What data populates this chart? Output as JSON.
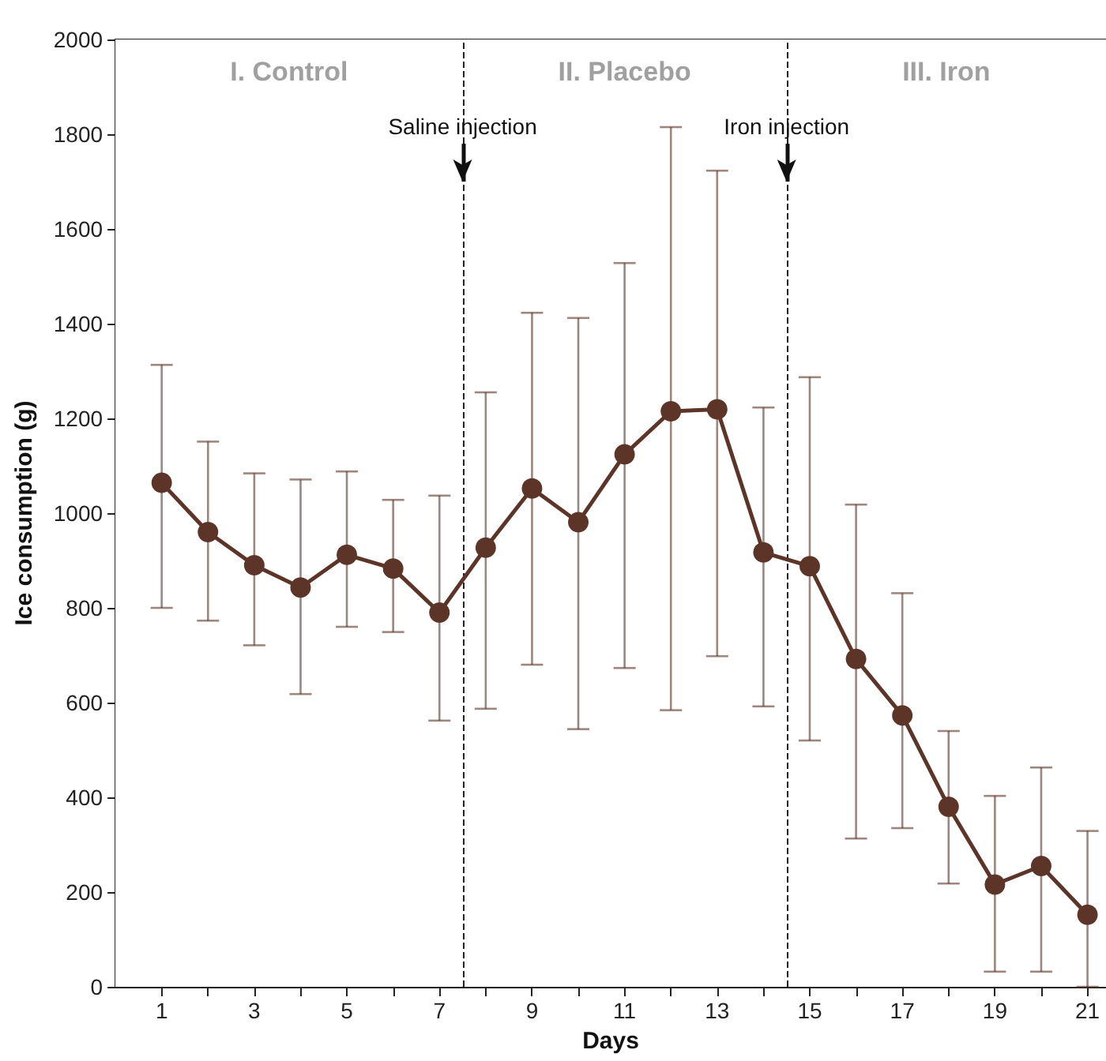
{
  "chart_data": {
    "type": "line",
    "xlabel": "Days",
    "ylabel": "Ice consumption (g)",
    "x": [
      1,
      2,
      3,
      4,
      5,
      6,
      7,
      8,
      9,
      10,
      11,
      12,
      13,
      14,
      15,
      16,
      17,
      18,
      19,
      20,
      21
    ],
    "series": [
      {
        "color": "#5c3528",
        "values": [
          1064,
          960,
          890,
          843,
          912,
          883,
          790,
          927,
          1052,
          981,
          1124,
          1215,
          1219,
          917,
          888,
          692,
          573,
          380,
          216,
          255,
          152
        ],
        "errors": [
          [
            800,
            1313
          ],
          [
            773,
            1151
          ],
          [
            721,
            1084
          ],
          [
            618,
            1071
          ],
          [
            760,
            1088
          ],
          [
            749,
            1028
          ],
          [
            562,
            1037
          ],
          [
            587,
            1255
          ],
          [
            680,
            1423
          ],
          [
            544,
            1412
          ],
          [
            673,
            1528
          ],
          [
            584,
            1815
          ],
          [
            698,
            1723
          ],
          [
            592,
            1223
          ],
          [
            520,
            1287
          ],
          [
            313,
            1018
          ],
          [
            335,
            831
          ],
          [
            218,
            540
          ],
          [
            32,
            403
          ],
          [
            32,
            463
          ],
          [
            0,
            329
          ]
        ]
      }
    ],
    "xlim": [
      0,
      21.4
    ],
    "ylim": [
      0,
      2000
    ],
    "xticks": [
      1,
      {
        "value": 2,
        "label": null
      },
      3,
      {
        "value": 4,
        "label": null
      },
      5,
      {
        "value": 6,
        "label": null
      },
      7,
      {
        "value": 8,
        "label": null
      },
      9,
      {
        "value": 10,
        "label": null
      },
      11,
      {
        "value": 12,
        "label": null
      },
      13,
      {
        "value": 14,
        "label": null
      },
      15,
      {
        "value": 16,
        "label": null
      },
      17,
      {
        "value": 18,
        "label": null
      },
      19,
      {
        "value": 20,
        "label": null
      },
      21
    ],
    "yticks": [
      0,
      200,
      400,
      600,
      800,
      1000,
      1200,
      1400,
      1600,
      1800,
      2000
    ],
    "ref_lines": [
      {
        "axis": "x",
        "value": 7.5,
        "label": null,
        "line_style": "dashed",
        "color": "#222222"
      },
      {
        "axis": "x",
        "value": 14.5,
        "label": null,
        "line_style": "dashed",
        "color": "#222222"
      }
    ],
    "bands": [
      {
        "axis": "x",
        "from": 0,
        "to": 7.5,
        "label": "I. Control",
        "color": "#ffffff"
      },
      {
        "axis": "x",
        "from": 7.5,
        "to": 14.5,
        "label": "II. Placebo",
        "color": "#ffffff"
      },
      {
        "axis": "x",
        "from": 14.5,
        "to": 21.4,
        "label": "III. Iron",
        "color": "#ffffff"
      }
    ],
    "annotations": [
      {
        "text": "Saline injection",
        "x": 7.5,
        "y": 1700
      },
      {
        "text": "Iron injection",
        "x": 14.5,
        "y": 1700
      }
    ],
    "marker": "circle",
    "line_style": "solid",
    "grid": false
  }
}
